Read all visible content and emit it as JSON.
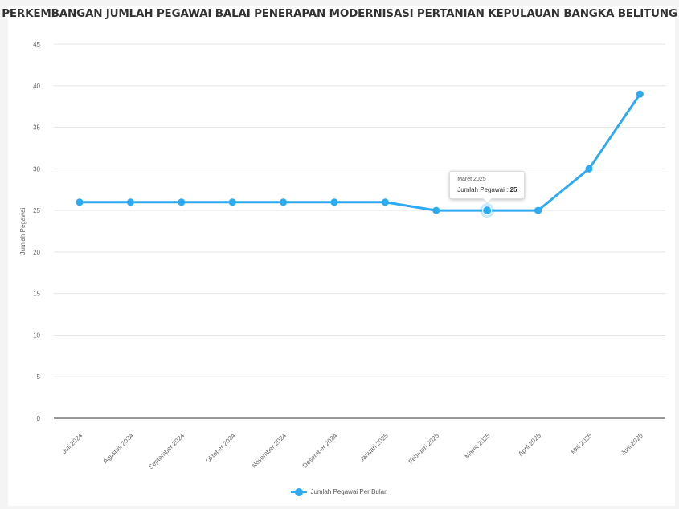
{
  "page": {
    "title": "PERKEMBANGAN JUMLAH PEGAWAI BALAI PENERAPAN MODERNISASI PERTANIAN KEPULAUAN BANGKA BELITUNG"
  },
  "tooltip": {
    "month": "Maret 2025",
    "label": "Jumlah Pegawai",
    "value": "25"
  },
  "legend": {
    "label": "Jumlah Pegawai Per Bulan"
  },
  "colors": {
    "series": "#2eaaf0",
    "grid": "#e6e6e6",
    "axis": "#333333"
  },
  "chart_data": {
    "type": "line",
    "title": "PERKEMBANGAN JUMLAH PEGAWAI BALAI PENERAPAN MODERNISASI PERTANIAN KEPULAUAN BANGKA BELITUNG",
    "xlabel": "",
    "ylabel": "Jumlah Pegawai",
    "categories": [
      "Juli 2024",
      "Agustus 2024",
      "September 2024",
      "Oktober 2024",
      "November 2024",
      "Desember 2024",
      "Januari 2025",
      "Februari 2025",
      "Maret 2025",
      "April 2025",
      "Mei 2025",
      "Juni 2025"
    ],
    "series": [
      {
        "name": "Jumlah Pegawai Per Bulan",
        "values": [
          26,
          26,
          26,
          26,
          26,
          26,
          26,
          25,
          25,
          25,
          30,
          39
        ]
      }
    ],
    "ylim": [
      0,
      45
    ],
    "yticks": [
      0,
      5,
      10,
      15,
      20,
      25,
      30,
      35,
      40,
      45
    ],
    "grid": true,
    "legend": "bottom",
    "highlighted_category": "Maret 2025"
  }
}
